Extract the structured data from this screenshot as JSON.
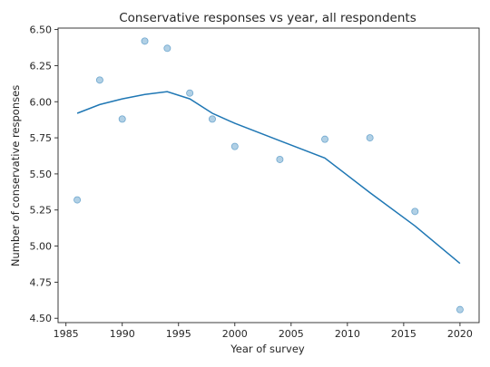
{
  "chart_data": {
    "type": "scatter",
    "title": "Conservative responses vs year, all respondents",
    "xlabel": "Year of survey",
    "ylabel": "Number of conservative responses",
    "xlim": [
      1984.3,
      2021.7
    ],
    "ylim": [
      4.47,
      6.51
    ],
    "xticks": [
      "1985",
      "1990",
      "1995",
      "2000",
      "2005",
      "2010",
      "2015",
      "2020"
    ],
    "xtick_values": [
      1985,
      1990,
      1995,
      2000,
      2005,
      2010,
      2015,
      2020
    ],
    "yticks": [
      "4.50",
      "4.75",
      "5.00",
      "5.25",
      "5.50",
      "5.75",
      "6.00",
      "6.25",
      "6.50"
    ],
    "ytick_values": [
      4.5,
      4.75,
      5.0,
      5.25,
      5.5,
      5.75,
      6.0,
      6.25,
      6.5
    ],
    "grid": false,
    "series": [
      {
        "kind": "scatter",
        "color": "#1f77b4",
        "x": [
          1986,
          1988,
          1990,
          1992,
          1994,
          1996,
          1998,
          2000,
          2004,
          2008,
          2012,
          2016,
          2020
        ],
        "y": [
          5.32,
          6.15,
          5.88,
          6.42,
          6.37,
          6.06,
          5.88,
          5.69,
          5.6,
          5.74,
          5.75,
          5.24,
          4.56
        ]
      },
      {
        "kind": "line",
        "color": "#1f77b4",
        "x": [
          1986,
          1988,
          1990,
          1992,
          1994,
          1996,
          1998,
          2000,
          2004,
          2008,
          2012,
          2016,
          2020
        ],
        "y": [
          5.92,
          5.98,
          6.02,
          6.05,
          6.07,
          6.02,
          5.92,
          5.85,
          5.73,
          5.61,
          5.37,
          5.14,
          4.88
        ]
      }
    ]
  }
}
